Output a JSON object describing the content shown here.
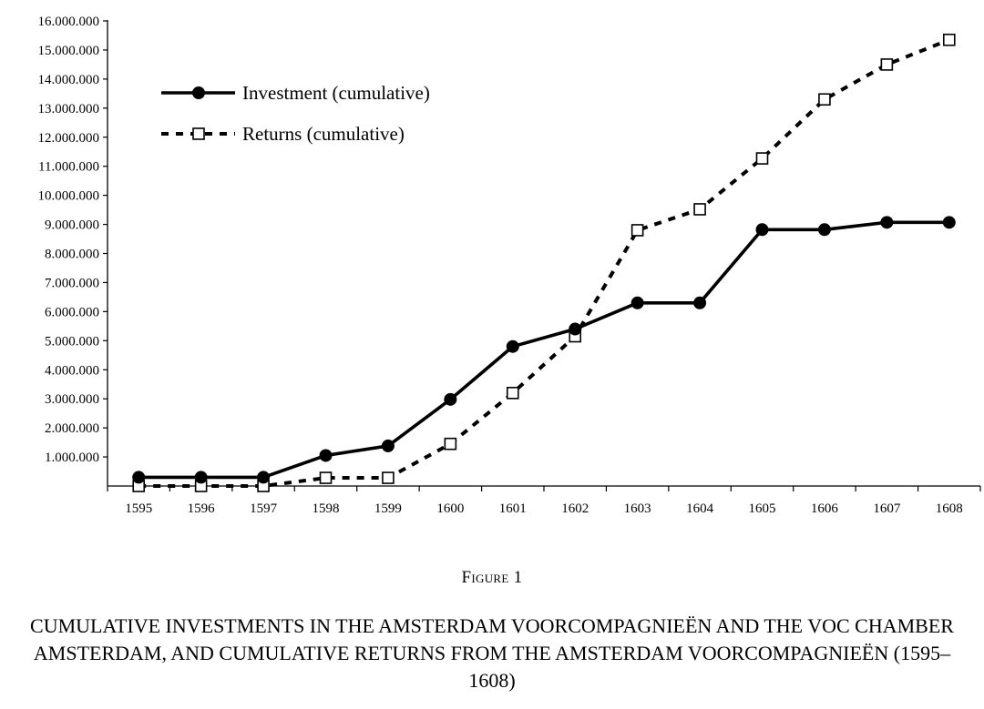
{
  "figure": {
    "label": "Figure 1",
    "caption": "CUMULATIVE INVESTMENTS IN THE AMSTERDAM VOORCOMPAGNIEËN AND THE VOC CHAMBER AMSTERDAM, AND CUMULATIVE RETURNS FROM THE AMSTERDAM VOORCOMPAGNIEËN (1595–1608)"
  },
  "chart_data": {
    "type": "line",
    "x": [
      "1595",
      "1596",
      "1597",
      "1598",
      "1599",
      "1600",
      "1601",
      "1602",
      "1603",
      "1604",
      "1605",
      "1606",
      "1607",
      "1608"
    ],
    "ylim": [
      0,
      16000000
    ],
    "yticks": [
      "1.000.000",
      "2.000.000",
      "3.000.000",
      "4.000.000",
      "5.000.000",
      "6.000.000",
      "7.000.000",
      "8.000.000",
      "9.000.000",
      "10.000.000",
      "11.000.000",
      "12.000.000",
      "13.000.000",
      "14.000.000",
      "15.000.000",
      "16.000.000"
    ],
    "legend_position": "top-left",
    "grid": false,
    "series": [
      {
        "name": "Investment (cumulative)",
        "style": "solid",
        "marker": "filled-circle",
        "color": "#000000",
        "values": [
          300000,
          300000,
          300000,
          1050000,
          1380000,
          2980000,
          4800000,
          5400000,
          6300000,
          6300000,
          8820000,
          8820000,
          9070000,
          9070000
        ]
      },
      {
        "name": "Returns (cumulative)",
        "style": "dashed",
        "marker": "open-square",
        "color": "#000000",
        "values": [
          0,
          0,
          0,
          280000,
          280000,
          1450000,
          3200000,
          5150000,
          8800000,
          9520000,
          11270000,
          13300000,
          14500000,
          15350000
        ]
      }
    ]
  }
}
